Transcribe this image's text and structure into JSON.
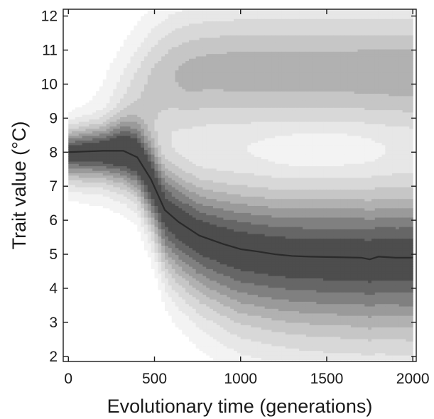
{
  "chart_data": {
    "type": "heatmap",
    "title": "",
    "xlabel": "Evolutionary time (generations)",
    "ylabel": "Trait value (°C)",
    "xlim": [
      -30,
      2020
    ],
    "ylim": [
      1.85,
      12.2
    ],
    "xticks": [
      0,
      500,
      1000,
      1500,
      2000
    ],
    "xtick_labels": [
      "0",
      "500",
      "1000",
      "1500",
      "2000"
    ],
    "yticks": [
      2,
      3,
      4,
      5,
      6,
      7,
      8,
      9,
      10,
      11,
      12
    ],
    "ytick_labels": [
      "2",
      "3",
      "4",
      "5",
      "6",
      "7",
      "8",
      "9",
      "10",
      "11",
      "12"
    ],
    "grid": false,
    "colorscale": "grayscale (white = low density, dark = high density)",
    "heatmap_extent": {
      "x": [
        0,
        2000
      ],
      "y": [
        1.9,
        12.2
      ]
    },
    "mean_trait_trajectory": {
      "x": [
        0,
        100,
        200,
        320,
        400,
        480,
        560,
        640,
        760,
        900,
        1000,
        1100,
        1200,
        1300,
        1400,
        1500,
        1600,
        1700,
        1750,
        1800,
        1900,
        2000
      ],
      "y": [
        8.0,
        8.02,
        8.04,
        8.04,
        7.85,
        7.2,
        6.3,
        5.95,
        5.55,
        5.3,
        5.15,
        5.08,
        5.0,
        4.95,
        4.93,
        4.92,
        4.91,
        4.9,
        4.85,
        4.93,
        4.9,
        4.9
      ]
    },
    "upper_band_envelope": {
      "x": [
        0,
        100,
        200,
        300,
        400,
        500,
        600,
        800,
        1000,
        1500,
        2000
      ],
      "y": [
        9.3,
        9.9,
        10.5,
        11.3,
        12.0,
        12.4,
        12.6,
        12.6,
        12.6,
        12.6,
        12.6
      ]
    },
    "upper_mode_center": {
      "x": [
        0,
        100,
        200,
        300,
        400,
        500,
        600,
        800,
        1000,
        1500,
        2000
      ],
      "y": [
        8.0,
        8.3,
        8.6,
        9.0,
        9.5,
        9.9,
        10.2,
        10.35,
        10.4,
        10.4,
        10.35
      ]
    },
    "upper_mode_spread": 1.15,
    "upper_mode_amplitude": {
      "x": [
        0,
        200,
        350,
        500,
        700,
        1000,
        1500,
        2000
      ],
      "y": [
        0.0,
        0.08,
        0.25,
        0.4,
        0.5,
        0.52,
        0.52,
        0.55
      ]
    },
    "pale_core": {
      "x": 1480,
      "y": 8.1
    },
    "lower_tail_width": {
      "x": [
        0,
        200,
        400,
        600,
        1000,
        1500,
        2000
      ],
      "y": [
        0.55,
        0.6,
        0.8,
        1.2,
        1.5,
        1.6,
        1.65
      ]
    }
  }
}
